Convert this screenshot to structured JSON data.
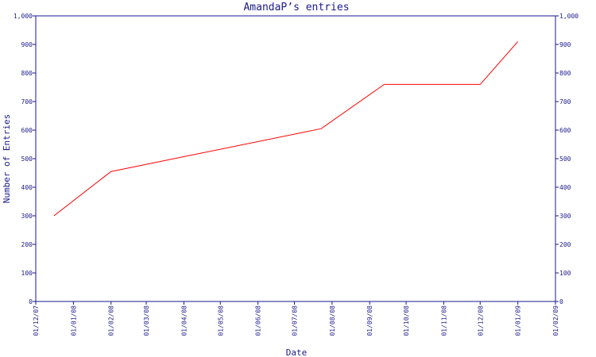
{
  "chart_data": {
    "type": "line",
    "title": "AmandaP’s entries",
    "xlabel": "Date",
    "ylabel": "Number of Entries",
    "ylim": [
      0,
      1000
    ],
    "y_ticks": [
      0,
      100,
      200,
      300,
      400,
      500,
      600,
      700,
      800,
      900,
      1000
    ],
    "y_tick_labels": [
      "0",
      "100",
      "200",
      "300",
      "400",
      "500",
      "600",
      "700",
      "800",
      "900",
      "1,000"
    ],
    "x_tick_labels": [
      "01/12/07",
      "01/01/08",
      "01/02/08",
      "01/03/08",
      "01/04/08",
      "01/05/08",
      "01/06/08",
      "01/07/08",
      "01/08/08",
      "01/09/08",
      "01/10/08",
      "01/11/08",
      "01/12/08",
      "01/01/09",
      "01/02/09"
    ],
    "grid": false,
    "line_color": "#ff0000",
    "axis_color": "#1a1a8c",
    "series": [
      {
        "x": [
          "2007-12-16",
          "2008-02-01",
          "2008-07-23",
          "2008-09-13",
          "2008-12-01",
          "2009-01-01"
        ],
        "values": [
          300,
          455,
          605,
          760,
          760,
          910
        ]
      }
    ]
  }
}
